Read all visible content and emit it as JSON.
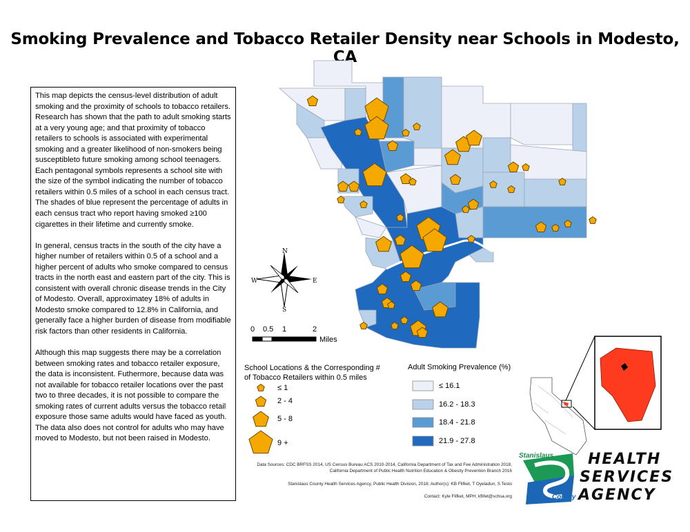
{
  "title": "Smoking Prevalence and Tobacco Retailer Density near Schools in Modesto, CA",
  "description": {
    "paragraphs": [
      "This map depicts the census-level distribution of adult smoking and the proximity of schools to tobacco retailers.  Research has shown that the path to adult smoking starts at a very young age; and that proximity of tobacco retailers to schools is associated with experimental smoking and a greater likelihood of non-smokers being susceptibleto future smoking among school teenagers.  Each pentagonal symbols represents a school site with the size of the symbol indicating the number of tobacco retailers within 0.5 miles of a school in each census tract.  The shades of blue represent the percentage of adults in each census tract who report having smoked ≥100 cigarettes in their lifetime and currently smoke.",
      "In general, census tracts in the south of the city have a higher number of retailers within 0.5 of a school and a higher percent of adults who smoke compared to census tracts in the north east and eastern part of the city.  This is consistent with overall chronic disease trends in the City of Modesto.  Overall, approximatey 18% of adults in Modesto smoke compared to 12.8% in California, and generally face a higher burden of disease from modifiable risk factors than other residents in California.",
      "Although this map suggests there may be a correlation between smoking rates and tobacco retailer exposure, the data is inconsistent.  Futhermore, because data was not available for tobacco retailer locations over the past two to three decades, it is not possible to compare the smoking rates of current adults versus the tobacco retail exposure those same adults would have faced as youth.  The data also does not control for adults who may have moved to Modesto, but not been raised in Modesto."
    ]
  },
  "compass": {
    "n": "N",
    "s": "S",
    "e": "E",
    "w": "W"
  },
  "scale_bar": {
    "ticks": [
      "0",
      "0.5",
      "1",
      "2"
    ],
    "unit": "Miles"
  },
  "school_legend": {
    "title_line1": "School Locations & the Corresponding #",
    "title_line2": "of Tobacco Retailers within 0.5 miles",
    "items": [
      {
        "label": "≤ 1"
      },
      {
        "label": "2 - 4"
      },
      {
        "label": "5 - 8"
      },
      {
        "label": "9 +"
      }
    ],
    "symbol_color": "#f5a800",
    "symbol_stroke": "#6b4a00"
  },
  "prevalence_legend": {
    "title": "Adult Smoking Prevalence (%)",
    "items": [
      {
        "label": "≤ 16.1",
        "color": "#eef0f9"
      },
      {
        "label": "16.2 - 18.3",
        "color": "#b9d1e9"
      },
      {
        "label": "18.4 - 21.8",
        "color": "#5a9bd4"
      },
      {
        "label": "21.9 - 27.8",
        "color": "#1f69bf"
      }
    ]
  },
  "credits": {
    "line1": "Data Sources: CDC BRFSS 2014, US Census Bureau ACS 2010-2014, California Department of Tax and Fee Administration 2018,",
    "line2": "California Department of Public Health Nutrition Education & Obesity Prevention Branch 2016",
    "line3": "Stanislaus County Health Services Agency, Public Health Division, 2018; Author(s):  KB Flifket, T Oyeladun, S Testo",
    "line4": "Contact:  Kyle Flifket, MPH; kflifet@schsa.org"
  },
  "logo": {
    "top_word": "Stanislaus",
    "bottom_word": "County",
    "line1": "HEALTH",
    "line2": "SERVICES",
    "line3": "AGENCY"
  },
  "inset": {
    "county_color": "#ff3b1f",
    "state_color": "#ffffff"
  }
}
